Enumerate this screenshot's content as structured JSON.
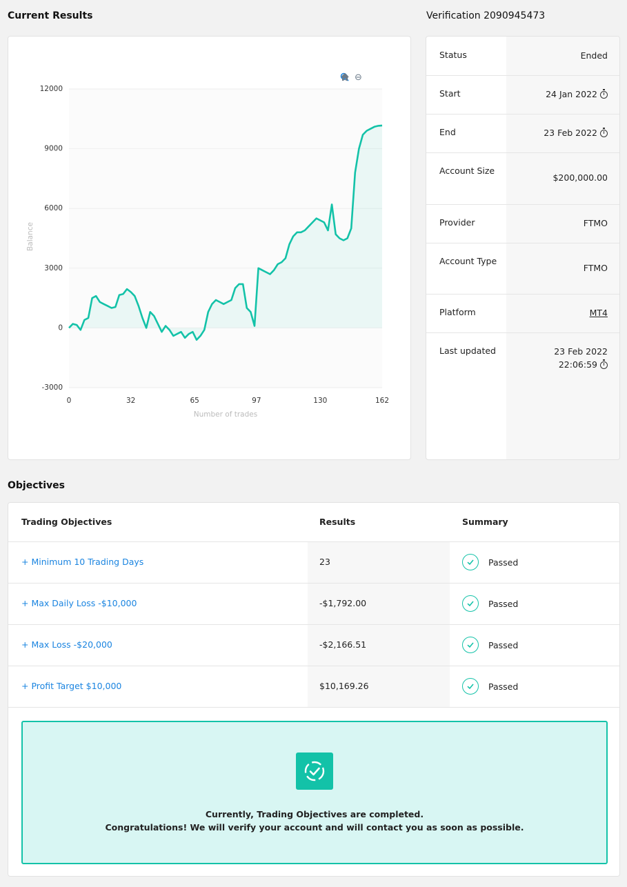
{
  "current_results": {
    "title": "Current Results"
  },
  "zoom_tools": {
    "zoom_in": "⊕",
    "zoom_out": "⊖",
    "zoom_select": "🔍",
    "home": "⌂"
  },
  "chart_data": {
    "type": "area",
    "xlabel": "Number of trades",
    "ylabel": "Balance",
    "x_ticks": [
      "0",
      "32",
      "65",
      "97",
      "130",
      "162"
    ],
    "y_ticks": [
      "12000",
      "9000",
      "6000",
      "3000",
      "0",
      "-3000"
    ],
    "xlim": [
      0,
      162
    ],
    "ylim": [
      -3000,
      12000
    ],
    "line_color": "#13c2a8",
    "grid": true,
    "series": [
      {
        "x": [
          0,
          2,
          4,
          6,
          8,
          10,
          12,
          14,
          16,
          18,
          20,
          22,
          24,
          26,
          28,
          30,
          32,
          34,
          36,
          38,
          40,
          42,
          44,
          46,
          48,
          50,
          52,
          54,
          56,
          58,
          60,
          62,
          64,
          66,
          68,
          70,
          72,
          74,
          76,
          78,
          80,
          82,
          84,
          86,
          88,
          90,
          92,
          94,
          96,
          98,
          100,
          102,
          104,
          106,
          108,
          110,
          112,
          114,
          116,
          118,
          120,
          122,
          124,
          126,
          128,
          130,
          132,
          134,
          136,
          138,
          140,
          142,
          144,
          146,
          148,
          150,
          152,
          154,
          156,
          158,
          160,
          162
        ],
        "y": [
          0,
          200,
          150,
          -100,
          400,
          500,
          1500,
          1600,
          1300,
          1200,
          1100,
          1000,
          1050,
          1650,
          1700,
          1950,
          1800,
          1600,
          1100,
          500,
          0,
          800,
          600,
          200,
          -200,
          100,
          -100,
          -400,
          -300,
          -200,
          -500,
          -300,
          -200,
          -600,
          -400,
          -100,
          800,
          1200,
          1400,
          1300,
          1200,
          1300,
          1400,
          2000,
          2200,
          2200,
          1000,
          800,
          100,
          3000,
          2900,
          2800,
          2700,
          2900,
          3200,
          3300,
          3500,
          4200,
          4600,
          4800,
          4800,
          4900,
          5100,
          5300,
          5500,
          5400,
          5300,
          4900,
          6200,
          4700,
          4500,
          4400,
          4500,
          5000,
          7800,
          9000,
          9700,
          9900,
          10000,
          10100,
          10150,
          10169
        ]
      }
    ]
  },
  "verification": {
    "title": "Verification 2090945473",
    "rows": [
      {
        "label": "Status",
        "value": "Ended"
      },
      {
        "label": "Start",
        "value": "24 Jan 2022"
      },
      {
        "label": "End",
        "value": "23 Feb 2022"
      },
      {
        "label": "Account Size",
        "value": "$200,000.00"
      },
      {
        "label": "Provider",
        "value": "FTMO"
      },
      {
        "label": "Account Type",
        "value": "FTMO"
      },
      {
        "label": "Platform",
        "value": "MT4"
      },
      {
        "label": "Last updated",
        "value_line1": "23 Feb 2022",
        "value_line2": "22:06:59"
      }
    ]
  },
  "objectives": {
    "title": "Objectives",
    "headers": {
      "name": "Trading Objectives",
      "results": "Results",
      "summary": "Summary"
    },
    "rows": [
      {
        "name": "+ Minimum 10 Trading Days",
        "result": "23",
        "summary": "Passed"
      },
      {
        "name": "+ Max Daily Loss -$10,000",
        "result": "-$1,792.00",
        "summary": "Passed"
      },
      {
        "name": "+ Max Loss -$20,000",
        "result": "-$2,166.51",
        "summary": "Passed"
      },
      {
        "name": "+ Profit Target $10,000",
        "result": "$10,169.26",
        "summary": "Passed"
      }
    ],
    "success": {
      "line1": "Currently, Trading Objectives are completed.",
      "line2": "Congratulations! We will verify your account and will contact you as soon as possible."
    }
  },
  "colors": {
    "accent": "#13c2a8",
    "link": "#1a84e0",
    "success_bg": "#d8f6f3"
  }
}
